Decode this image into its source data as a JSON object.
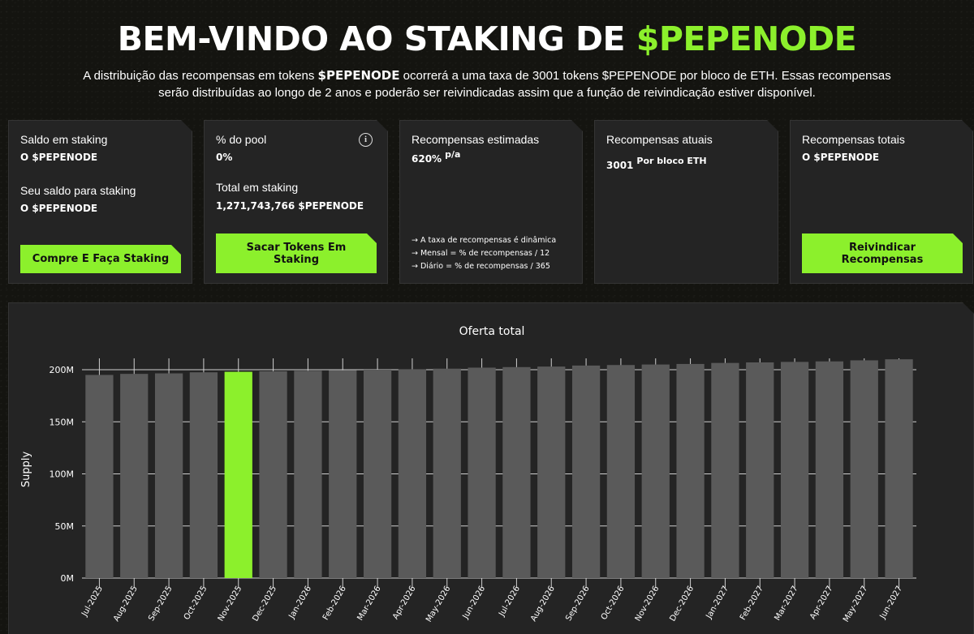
{
  "header": {
    "title_main": "BEM-VINDO AO STAKING DE",
    "title_accent": "$PEPENODE",
    "desc_pre": "A distribuição das recompensas em tokens",
    "desc_token": "$PEPENODE",
    "desc_post": "ocorrerá a uma taxa de 3001 tokens $PEPENODE por bloco de ETH. Essas recompensas serão distribuídas ao longo de 2 anos e poderão ser reivindicadas assim que a função de reivindicação estiver disponível."
  },
  "cards": {
    "staking_balance": {
      "label": "Saldo em staking",
      "value": "O $PEPENODE",
      "available_label": "Seu saldo para staking",
      "available_value": "O $PEPENODE",
      "button": "Compre E Faça Staking"
    },
    "pool": {
      "label": "% do pool",
      "value": "0%",
      "total_label": "Total em staking",
      "total_value": "1,271,743,766 $PEPENODE",
      "button": "Sacar Tokens Em Staking"
    },
    "estimated": {
      "label": "Recompensas estimadas",
      "value": "620%",
      "unit": "p/a",
      "notes": [
        "→ A taxa de recompensas é dinâmica",
        "→ Mensal = % de recompensas / 12",
        "→ Diário = % de recompensas / 365"
      ]
    },
    "current": {
      "label": "Recompensas atuais",
      "value": "3001",
      "unit": "Por bloco ETH"
    },
    "total": {
      "label": "Recompensas totais",
      "value": "O $PEPENODE",
      "button": "Reivindicar Recompensas"
    }
  },
  "colors": {
    "accent": "#8cf02c",
    "bar": "#5a5a5a",
    "panel": "#242424"
  },
  "chart_data": {
    "type": "bar",
    "title": "Oferta total",
    "ylabel": "Supply",
    "xlabel": "",
    "ylim": [
      0,
      210
    ],
    "yticks": [
      "0M",
      "50M",
      "100M",
      "150M",
      "200M"
    ],
    "highlight_index": 4,
    "categories": [
      "Jul-2025",
      "Aug-2025",
      "Sep-2025",
      "Oct-2025",
      "Nov-2025",
      "Dec-2025",
      "Jan-2026",
      "Feb-2026",
      "Mar-2026",
      "Apr-2026",
      "May-2026",
      "Jun-2026",
      "Jul-2026",
      "Aug-2026",
      "Sep-2026",
      "Oct-2026",
      "Nov-2026",
      "Dec-2026",
      "Jan-2027",
      "Feb-2027",
      "Mar-2027",
      "Apr-2027",
      "May-2027",
      "Jun-2027"
    ],
    "values": [
      195,
      196,
      196.5,
      197.5,
      198,
      198.5,
      199,
      199.5,
      200,
      200.5,
      201,
      202,
      202.5,
      203,
      204,
      204.5,
      205,
      205.5,
      206.5,
      207,
      207.5,
      208,
      209,
      210
    ]
  }
}
